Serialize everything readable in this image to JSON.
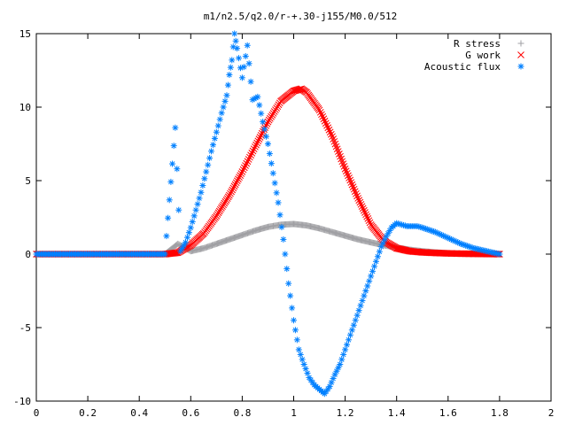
{
  "chart_data": {
    "type": "scatter",
    "title": "m1/n2.5/q2.0/r-+.30-j155/M0.0/512",
    "xlim": [
      0,
      2
    ],
    "ylim": [
      -10,
      15
    ],
    "x_ticks": [
      "0",
      "0.2",
      "0.4",
      "0.6",
      "0.8",
      "1",
      "1.2",
      "1.4",
      "1.6",
      "1.8",
      "2"
    ],
    "y_ticks": [
      "-10",
      "-5",
      "0",
      "5",
      "10",
      "15"
    ],
    "x_tick_values": [
      0,
      0.2,
      0.4,
      0.6,
      0.8,
      1.0,
      1.2,
      1.4,
      1.6,
      1.8,
      2.0
    ],
    "y_tick_values": [
      -10,
      -5,
      0,
      5,
      10,
      15
    ],
    "grid": false,
    "legend_position": "top-right",
    "series": [
      {
        "name": "R stress",
        "marker": "plus",
        "color": "#a0a0a4",
        "x": [
          0.0,
          0.1,
          0.2,
          0.3,
          0.4,
          0.5,
          0.55,
          0.6,
          0.65,
          0.7,
          0.75,
          0.8,
          0.85,
          0.9,
          0.95,
          1.0,
          1.05,
          1.1,
          1.15,
          1.2,
          1.25,
          1.3,
          1.35,
          1.4,
          1.45,
          1.5,
          1.55,
          1.6,
          1.65,
          1.7,
          1.75,
          1.8
        ],
        "y": [
          0,
          0,
          0,
          0,
          0,
          0,
          0.7,
          0.2,
          0.4,
          0.7,
          1.0,
          1.3,
          1.6,
          1.85,
          2.0,
          2.05,
          1.95,
          1.75,
          1.5,
          1.25,
          1.0,
          0.8,
          0.6,
          0.45,
          0.3,
          0.2,
          0.12,
          0.06,
          0.03,
          0.01,
          0.0,
          0.0
        ]
      },
      {
        "name": "G work",
        "marker": "cross",
        "color": "#ff0000",
        "x": [
          0.0,
          0.1,
          0.2,
          0.3,
          0.4,
          0.5,
          0.55,
          0.6,
          0.65,
          0.7,
          0.75,
          0.8,
          0.85,
          0.9,
          0.95,
          1.0,
          1.03,
          1.05,
          1.1,
          1.15,
          1.2,
          1.25,
          1.3,
          1.35,
          1.4,
          1.45,
          1.5,
          1.55,
          1.6,
          1.65,
          1.7,
          1.75,
          1.8
        ],
        "y": [
          0,
          0,
          0,
          0,
          0,
          0,
          0.1,
          0.6,
          1.4,
          2.6,
          4.0,
          5.6,
          7.3,
          9.0,
          10.4,
          11.1,
          11.25,
          11.0,
          9.8,
          8.0,
          5.8,
          3.8,
          2.0,
          0.9,
          0.4,
          0.2,
          0.12,
          0.08,
          0.05,
          0.03,
          0.02,
          0.01,
          0.0
        ]
      },
      {
        "name": "Acoustic flux",
        "marker": "star",
        "color": "#0080ff",
        "x": [
          0.0,
          0.1,
          0.2,
          0.3,
          0.4,
          0.5,
          0.54,
          0.56,
          0.58,
          0.6,
          0.62,
          0.64,
          0.66,
          0.68,
          0.7,
          0.72,
          0.74,
          0.75,
          0.76,
          0.77,
          0.78,
          0.8,
          0.82,
          0.84,
          0.86,
          0.88,
          0.9,
          0.92,
          0.94,
          0.96,
          0.98,
          1.0,
          1.02,
          1.04,
          1.06,
          1.08,
          1.1,
          1.12,
          1.14,
          1.16,
          1.18,
          1.2,
          1.22,
          1.24,
          1.26,
          1.28,
          1.3,
          1.32,
          1.34,
          1.36,
          1.38,
          1.4,
          1.42,
          1.44,
          1.46,
          1.48,
          1.5,
          1.55,
          1.6,
          1.65,
          1.7,
          1.75,
          1.8
        ],
        "y": [
          0,
          0,
          0,
          0,
          0,
          0,
          8.6,
          0.2,
          0.8,
          1.8,
          3.0,
          4.2,
          5.6,
          7.0,
          8.3,
          9.6,
          10.8,
          12.2,
          13.2,
          15.0,
          14.0,
          12.0,
          14.2,
          10.5,
          10.7,
          9.0,
          7.5,
          5.5,
          3.5,
          1.0,
          -2.0,
          -4.5,
          -6.5,
          -7.5,
          -8.4,
          -8.9,
          -9.2,
          -9.5,
          -9.0,
          -8.2,
          -7.5,
          -6.5,
          -5.5,
          -4.5,
          -3.5,
          -2.5,
          -1.5,
          -0.5,
          0.5,
          1.2,
          1.8,
          2.1,
          2.0,
          1.9,
          1.9,
          1.9,
          1.8,
          1.5,
          1.1,
          0.7,
          0.4,
          0.2,
          0.0
        ]
      }
    ]
  }
}
